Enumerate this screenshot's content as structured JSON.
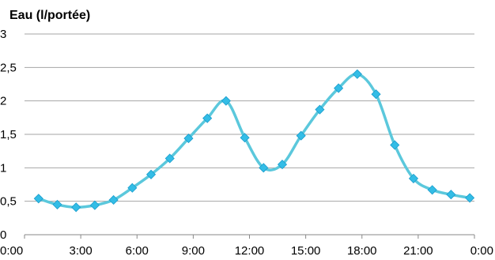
{
  "chart_data": {
    "type": "line",
    "title": "Eau (l/portée)",
    "xlabel": "",
    "ylabel": "",
    "xlim": [
      0,
      24
    ],
    "ylim": [
      0,
      3
    ],
    "x_ticks": [
      0,
      3,
      6,
      9,
      12,
      15,
      18,
      21,
      24
    ],
    "x_tick_labels": [
      "0:00",
      "3:00",
      "6:00",
      "9:00",
      "12:00",
      "15:00",
      "18:00",
      "21:00",
      "0:00"
    ],
    "y_ticks": [
      0,
      0.5,
      1,
      1.5,
      2,
      2.5,
      3
    ],
    "y_tick_labels": [
      "0",
      "0,5",
      "1",
      "1,5",
      "2",
      "2,5",
      "3"
    ],
    "grid": "horizontal",
    "legend": "none",
    "series": [
      {
        "color": "#5bc8dc",
        "marker_color": "#33bde6",
        "marker": "diamond",
        "smooth": true,
        "x": [
          0.75,
          1.75,
          2.75,
          3.75,
          4.75,
          5.75,
          6.75,
          7.75,
          8.75,
          9.75,
          10.75,
          11.75,
          12.75,
          13.75,
          14.75,
          15.75,
          16.75,
          17.75,
          18.75,
          19.75,
          20.75,
          21.75,
          22.75,
          23.75
        ],
        "values": [
          0.54,
          0.45,
          0.41,
          0.44,
          0.52,
          0.7,
          0.9,
          1.14,
          1.44,
          1.74,
          2.0,
          1.45,
          1.0,
          1.05,
          1.48,
          1.87,
          2.19,
          2.4,
          2.1,
          1.34,
          0.84,
          0.67,
          0.6,
          0.55
        ]
      }
    ]
  }
}
